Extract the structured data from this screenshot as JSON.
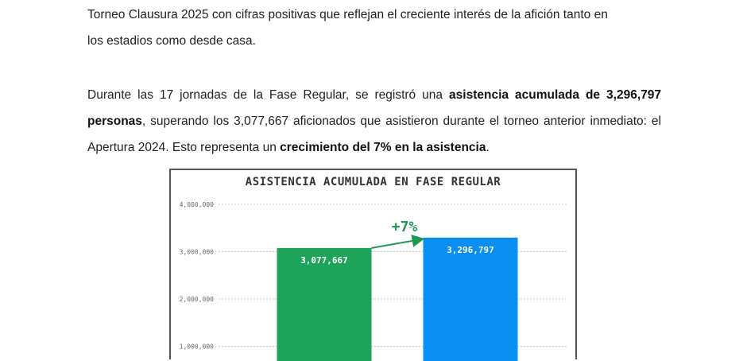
{
  "document": {
    "paragraph1": {
      "line1": "Torneo Clausura 2025 con cifras positivas que reflejan el creciente interés de la afición tanto en",
      "line2": "los estadios como desde casa."
    },
    "paragraph2": {
      "text_a": "Durante las 17 jornadas de la Fase Regular, se registró una ",
      "bold_a": "asistencia acumulada de 3,296,797 personas",
      "text_b": ", superando los 3,077,667 aficionados que asistieron durante el torneo anterior inmediato: el Apertura 2024. Esto representa un ",
      "bold_b": "crecimiento del 7% en la asistencia",
      "text_c": "."
    }
  },
  "chart_data": {
    "type": "bar",
    "title": "ASISTENCIA ACUMULADA EN FASE REGULAR",
    "categories": [
      "",
      ""
    ],
    "values": [
      3077667,
      3296797
    ],
    "value_labels": [
      "3,077,667",
      "3,296,797"
    ],
    "bar_colors": [
      "#1ea35a",
      "#0a8ef0"
    ],
    "ylim": [
      0,
      4000000
    ],
    "yticks": [
      1000000,
      2000000,
      3000000,
      4000000
    ],
    "ytick_labels": [
      "1,000,000",
      "2,000,000",
      "3,000,000",
      "4,000,000"
    ],
    "annotation": "+7%",
    "annotation_color": "#1f9a55",
    "grid": true
  }
}
